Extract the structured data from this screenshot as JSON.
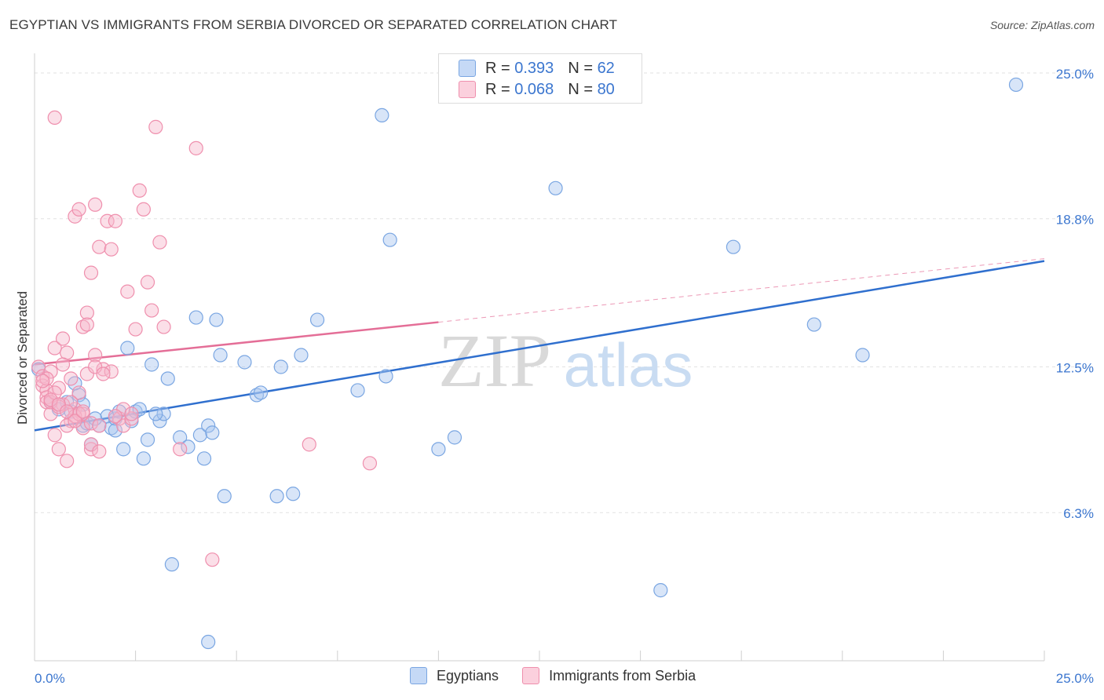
{
  "header": {
    "title": "EGYPTIAN VS IMMIGRANTS FROM SERBIA DIVORCED OR SEPARATED CORRELATION CHART",
    "source": "Source: ZipAtlas.com"
  },
  "legend": {
    "r_label": "R =",
    "n_label": "N =",
    "rows": [
      {
        "r": "0.393",
        "n": "62",
        "color": "#a9c6f0"
      },
      {
        "r": "0.068",
        "n": "80",
        "color": "#f7b8cb"
      }
    ]
  },
  "watermark": {
    "zip": "ZIP",
    "atlas": "atlas"
  },
  "chart_data": {
    "type": "scatter",
    "title": "EGYPTIAN VS IMMIGRANTS FROM SERBIA DIVORCED OR SEPARATED CORRELATION CHART",
    "xlabel": "",
    "ylabel": "Divorced or Separated",
    "xlim": [
      0,
      25
    ],
    "ylim": [
      0,
      25.5
    ],
    "x_tick_labels": [
      "0.0%",
      "25.0%"
    ],
    "y_ticks": [
      6.3,
      12.5,
      18.8,
      25.0
    ],
    "y_tick_labels": [
      "6.3%",
      "12.5%",
      "18.8%",
      "25.0%"
    ],
    "grid": true,
    "legend_position": "top-center",
    "series": [
      {
        "name": "Egyptians",
        "color": "#a9c6f0",
        "stroke": "#7aa6e2",
        "trend": {
          "x": [
            0,
            25
          ],
          "y": [
            9.8,
            17.0
          ],
          "color": "#2f6fce"
        },
        "points": [
          [
            0.1,
            12.4
          ],
          [
            0.4,
            11.0
          ],
          [
            0.6,
            10.7
          ],
          [
            0.8,
            11.0
          ],
          [
            0.9,
            10.6
          ],
          [
            1.1,
            11.3
          ],
          [
            1.2,
            10.0
          ],
          [
            1.0,
            11.8
          ],
          [
            1.3,
            10.1
          ],
          [
            1.4,
            9.2
          ],
          [
            1.6,
            10.0
          ],
          [
            1.8,
            10.4
          ],
          [
            1.9,
            9.9
          ],
          [
            2.0,
            10.3
          ],
          [
            2.1,
            10.6
          ],
          [
            2.2,
            9.0
          ],
          [
            2.3,
            13.3
          ],
          [
            2.4,
            10.2
          ],
          [
            2.5,
            10.6
          ],
          [
            2.6,
            10.7
          ],
          [
            2.7,
            8.6
          ],
          [
            2.8,
            9.4
          ],
          [
            2.9,
            12.6
          ],
          [
            3.1,
            10.2
          ],
          [
            3.2,
            10.5
          ],
          [
            3.3,
            12.0
          ],
          [
            3.6,
            9.5
          ],
          [
            3.8,
            9.1
          ],
          [
            4.1,
            9.6
          ],
          [
            4.0,
            14.6
          ],
          [
            4.3,
            10.0
          ],
          [
            4.4,
            9.7
          ],
          [
            4.5,
            14.5
          ],
          [
            4.6,
            13.0
          ],
          [
            4.7,
            7.0
          ],
          [
            5.2,
            12.7
          ],
          [
            5.5,
            11.3
          ],
          [
            5.6,
            11.4
          ],
          [
            6.0,
            7.0
          ],
          [
            6.1,
            12.5
          ],
          [
            6.4,
            7.1
          ],
          [
            6.6,
            13.0
          ],
          [
            7.0,
            14.5
          ],
          [
            8.0,
            11.5
          ],
          [
            8.6,
            23.2
          ],
          [
            8.7,
            12.1
          ],
          [
            8.8,
            17.9
          ],
          [
            10.0,
            9.0
          ],
          [
            10.4,
            9.5
          ],
          [
            12.9,
            20.1
          ],
          [
            15.5,
            3.0
          ],
          [
            17.3,
            17.6
          ],
          [
            19.3,
            14.3
          ],
          [
            20.5,
            13.0
          ],
          [
            24.3,
            24.5
          ],
          [
            4.2,
            8.6
          ],
          [
            3.4,
            4.1
          ],
          [
            4.3,
            0.8
          ],
          [
            1.2,
            10.9
          ],
          [
            3.0,
            10.5
          ],
          [
            2.0,
            9.8
          ],
          [
            1.5,
            10.3
          ]
        ]
      },
      {
        "name": "Immigrants from Serbia",
        "color": "#f7b8cb",
        "stroke": "#ef8fad",
        "trend": {
          "x": [
            0,
            10
          ],
          "y": [
            12.6,
            14.4
          ],
          "dashed_x": [
            10,
            25
          ],
          "dashed_y": [
            14.4,
            17.1
          ],
          "color": "#e46e97"
        },
        "points": [
          [
            0.1,
            12.5
          ],
          [
            0.2,
            12.1
          ],
          [
            0.2,
            11.7
          ],
          [
            0.3,
            11.5
          ],
          [
            0.3,
            11.2
          ],
          [
            0.3,
            11.0
          ],
          [
            0.4,
            12.3
          ],
          [
            0.4,
            10.5
          ],
          [
            0.5,
            13.3
          ],
          [
            0.5,
            9.6
          ],
          [
            0.6,
            9.0
          ],
          [
            0.6,
            11.6
          ],
          [
            0.7,
            13.7
          ],
          [
            0.7,
            10.9
          ],
          [
            0.8,
            8.5
          ],
          [
            0.8,
            13.1
          ],
          [
            0.9,
            10.2
          ],
          [
            0.9,
            12.0
          ],
          [
            1.0,
            18.9
          ],
          [
            1.0,
            10.7
          ],
          [
            1.1,
            11.4
          ],
          [
            1.1,
            19.2
          ],
          [
            1.2,
            14.2
          ],
          [
            1.2,
            10.5
          ],
          [
            1.3,
            14.8
          ],
          [
            1.3,
            12.2
          ],
          [
            1.4,
            16.5
          ],
          [
            1.4,
            9.0
          ],
          [
            1.5,
            13.0
          ],
          [
            1.5,
            19.4
          ],
          [
            1.6,
            17.6
          ],
          [
            1.7,
            12.4
          ],
          [
            1.8,
            18.7
          ],
          [
            1.9,
            17.5
          ],
          [
            2.0,
            18.7
          ],
          [
            2.1,
            10.3
          ],
          [
            2.2,
            10.0
          ],
          [
            2.3,
            15.7
          ],
          [
            2.4,
            10.3
          ],
          [
            2.5,
            14.1
          ],
          [
            2.6,
            20.0
          ],
          [
            2.7,
            19.2
          ],
          [
            2.8,
            16.1
          ],
          [
            2.9,
            14.9
          ],
          [
            3.0,
            22.7
          ],
          [
            3.1,
            17.8
          ],
          [
            3.2,
            14.2
          ],
          [
            3.6,
            9.0
          ],
          [
            4.0,
            21.8
          ],
          [
            4.4,
            4.3
          ],
          [
            0.5,
            23.1
          ],
          [
            6.8,
            9.2
          ],
          [
            8.3,
            8.4
          ],
          [
            0.4,
            11.0
          ],
          [
            0.6,
            10.8
          ],
          [
            0.8,
            10.0
          ],
          [
            1.0,
            10.4
          ],
          [
            1.2,
            9.9
          ],
          [
            1.4,
            9.2
          ],
          [
            1.6,
            8.9
          ],
          [
            1.9,
            12.3
          ],
          [
            2.2,
            10.7
          ],
          [
            0.3,
            12.0
          ],
          [
            0.5,
            11.4
          ],
          [
            0.7,
            12.6
          ],
          [
            0.9,
            11.0
          ],
          [
            1.1,
            10.5
          ],
          [
            1.3,
            14.3
          ],
          [
            1.5,
            12.5
          ],
          [
            1.7,
            12.2
          ],
          [
            0.2,
            11.9
          ],
          [
            0.4,
            11.1
          ],
          [
            0.6,
            10.9
          ],
          [
            0.8,
            10.6
          ],
          [
            1.0,
            10.2
          ],
          [
            1.2,
            10.6
          ],
          [
            1.4,
            10.1
          ],
          [
            1.6,
            10.0
          ],
          [
            2.0,
            10.4
          ],
          [
            2.4,
            10.5
          ]
        ]
      }
    ]
  }
}
